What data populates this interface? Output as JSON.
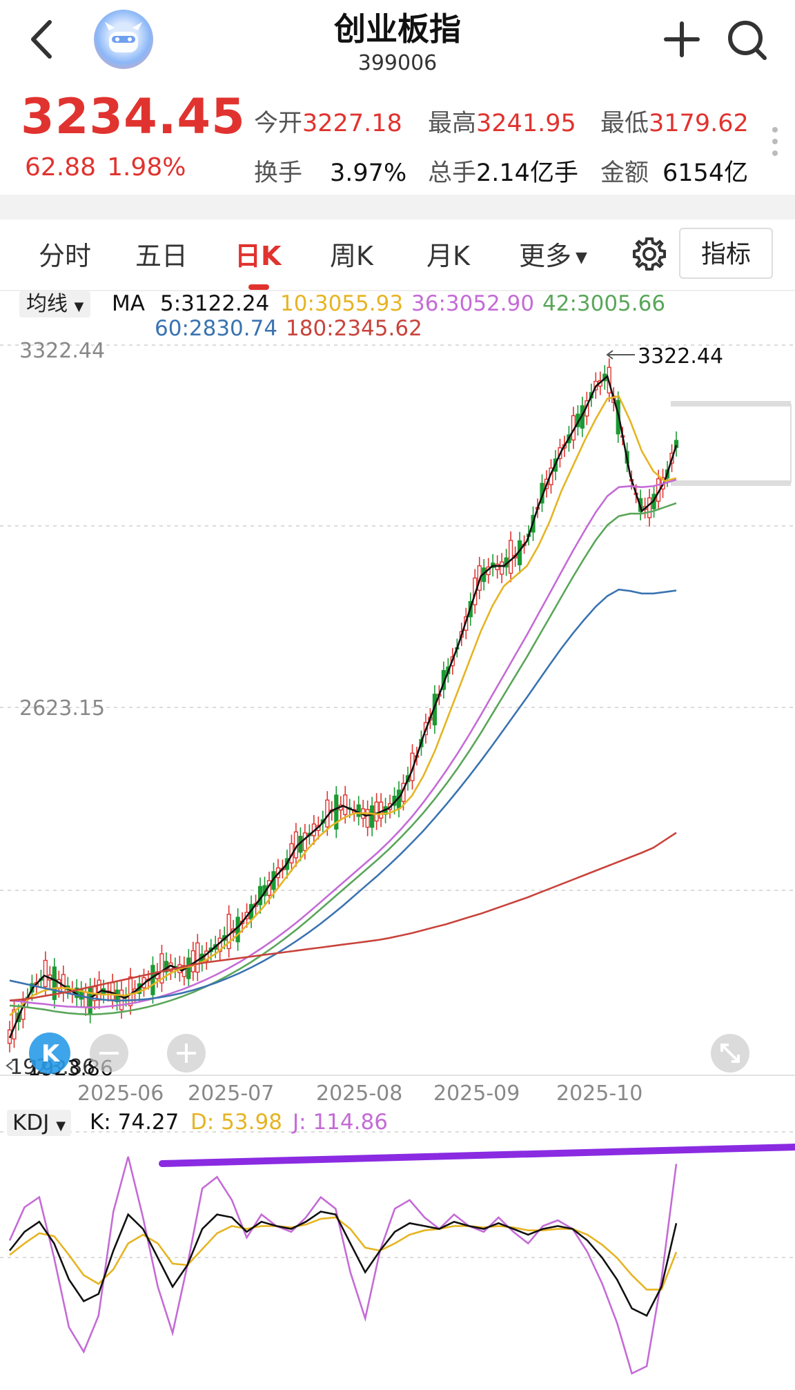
{
  "header": {
    "title": "创业板指",
    "code": "399006",
    "back_icon": "chevron-left-icon",
    "add_icon": "plus-icon",
    "search_icon": "search-icon"
  },
  "quote": {
    "price": "3234.45",
    "change": "62.88",
    "change_pct": "1.98%",
    "stats": [
      {
        "label": "今开",
        "value": "3227.18",
        "color": "red"
      },
      {
        "label": "最高",
        "value": "3241.95",
        "color": "red"
      },
      {
        "label": "最低",
        "value": "3179.62",
        "color": "red"
      },
      {
        "label": "换手",
        "value": "3.97%",
        "color": "black"
      },
      {
        "label": "总手",
        "value": "2.14亿手",
        "color": "black"
      },
      {
        "label": "金额",
        "value": "6154亿",
        "color": "black"
      }
    ]
  },
  "tabs": [
    {
      "label": "分时"
    },
    {
      "label": "五日"
    },
    {
      "label": "日K",
      "active": true
    },
    {
      "label": "周K"
    },
    {
      "label": "月K"
    },
    {
      "label": "更多"
    }
  ],
  "indicator_button": "指标",
  "ma_legend": {
    "selector": "均线",
    "prefix": "MA",
    "items": [
      {
        "label": "5:3122.24",
        "color": "#111111"
      },
      {
        "label": "10:3055.93",
        "color": "#e6b422"
      },
      {
        "label": "36:3052.90",
        "color": "#c46bd6"
      },
      {
        "label": "42:3005.66",
        "color": "#5aa65a"
      },
      {
        "label": "60:2830.74",
        "color": "#3a73b0"
      },
      {
        "label": "180:2345.62",
        "color": "#c8433b"
      }
    ]
  },
  "chart_data": {
    "type": "line",
    "x_ticks": [
      "2025-06",
      "2025-07",
      "2025-08",
      "2025-09",
      "2025-10"
    ],
    "y_ticks": [
      "3322.44",
      "2623.15",
      "1923.86"
    ],
    "high_marker": "3322.44",
    "low_marker": "1923.86",
    "series": [
      {
        "name": "MA5",
        "color": "#111111",
        "values": [
          1935,
          1990,
          2035,
          2060,
          2050,
          2035,
          2020,
          2015,
          2030,
          2025,
          2015,
          2030,
          2050,
          2065,
          2080,
          2070,
          2085,
          2100,
          2120,
          2140,
          2160,
          2190,
          2220,
          2255,
          2280,
          2320,
          2340,
          2360,
          2390,
          2400,
          2390,
          2380,
          2385,
          2395,
          2420,
          2470,
          2540,
          2600,
          2660,
          2720,
          2790,
          2860,
          2880,
          2880,
          2900,
          2930,
          3000,
          3060,
          3110,
          3150,
          3190,
          3240,
          3260,
          3180,
          3060,
          2990,
          3010,
          3050,
          3122
        ]
      },
      {
        "name": "MA10",
        "color": "#e6b422",
        "values": [
          1980,
          2000,
          2020,
          2030,
          2035,
          2035,
          2030,
          2025,
          2022,
          2022,
          2020,
          2025,
          2035,
          2050,
          2065,
          2075,
          2080,
          2090,
          2105,
          2125,
          2145,
          2170,
          2195,
          2225,
          2255,
          2285,
          2315,
          2340,
          2360,
          2375,
          2385,
          2385,
          2383,
          2385,
          2395,
          2420,
          2460,
          2510,
          2570,
          2630,
          2690,
          2750,
          2800,
          2840,
          2860,
          2880,
          2920,
          2970,
          3030,
          3080,
          3130,
          3175,
          3215,
          3220,
          3170,
          3110,
          3070,
          3050,
          3056
        ]
      },
      {
        "name": "MA36",
        "color": "#c46bd6",
        "values": [
          2010,
          2008,
          2005,
          2003,
          2000,
          1998,
          1997,
          1996,
          1997,
          1999,
          2002,
          2006,
          2011,
          2017,
          2024,
          2032,
          2041,
          2051,
          2062,
          2074,
          2087,
          2101,
          2116,
          2132,
          2149,
          2167,
          2186,
          2206,
          2226,
          2246,
          2266,
          2286,
          2306,
          2328,
          2352,
          2378,
          2407,
          2438,
          2471,
          2506,
          2543,
          2582,
          2622,
          2662,
          2702,
          2742,
          2784,
          2826,
          2868,
          2910,
          2950,
          2988,
          3020,
          3038,
          3040,
          3038,
          3040,
          3046,
          3053
        ]
      },
      {
        "name": "MA42",
        "color": "#5aa65a",
        "values": [
          2000,
          1998,
          1995,
          1992,
          1988,
          1985,
          1983,
          1982,
          1983,
          1985,
          1988,
          1992,
          1997,
          2003,
          2010,
          2018,
          2027,
          2037,
          2048,
          2060,
          2073,
          2087,
          2102,
          2118,
          2135,
          2153,
          2172,
          2192,
          2212,
          2232,
          2252,
          2272,
          2292,
          2313,
          2336,
          2360,
          2386,
          2414,
          2444,
          2476,
          2510,
          2546,
          2584,
          2622,
          2660,
          2698,
          2738,
          2778,
          2818,
          2858,
          2896,
          2932,
          2962,
          2980,
          2985,
          2985,
          2990,
          2998,
          3006
        ]
      },
      {
        "name": "MA60",
        "color": "#3a73b0",
        "values": [
          2050,
          2045,
          2040,
          2035,
          2030,
          2025,
          2020,
          2015,
          2012,
          2010,
          2010,
          2011,
          2013,
          2016,
          2020,
          2025,
          2031,
          2038,
          2046,
          2055,
          2065,
          2076,
          2088,
          2101,
          2115,
          2130,
          2146,
          2163,
          2181,
          2200,
          2220,
          2240,
          2260,
          2281,
          2303,
          2326,
          2350,
          2376,
          2403,
          2431,
          2460,
          2490,
          2521,
          2553,
          2585,
          2617,
          2650,
          2683,
          2715,
          2745,
          2773,
          2799,
          2820,
          2833,
          2830,
          2825,
          2825,
          2828,
          2831
        ]
      },
      {
        "name": "MA180",
        "color": "#c8433b",
        "values": [
          2010,
          2012,
          2015,
          2019,
          2023,
          2027,
          2032,
          2037,
          2042,
          2047,
          2052,
          2057,
          2062,
          2067,
          2072,
          2077,
          2082,
          2086,
          2089,
          2092,
          2095,
          2098,
          2101,
          2104,
          2107,
          2110,
          2113,
          2116,
          2119,
          2122,
          2125,
          2128,
          2131,
          2135,
          2140,
          2145,
          2151,
          2157,
          2163,
          2170,
          2177,
          2184,
          2192,
          2200,
          2208,
          2216,
          2225,
          2234,
          2243,
          2252,
          2261,
          2270,
          2279,
          2288,
          2297,
          2306,
          2316,
          2331,
          2346
        ]
      }
    ],
    "kdj": {
      "K": "74.27",
      "D": "53.98",
      "J": "114.86",
      "k_values": [
        55,
        68,
        75,
        60,
        35,
        20,
        25,
        55,
        80,
        70,
        50,
        30,
        45,
        70,
        80,
        78,
        68,
        75,
        72,
        70,
        75,
        82,
        80,
        60,
        40,
        55,
        68,
        74,
        72,
        70,
        75,
        72,
        70,
        74,
        70,
        66,
        70,
        72,
        70,
        62,
        50,
        35,
        15,
        10,
        30,
        74
      ],
      "d_values": [
        52,
        60,
        67,
        65,
        52,
        38,
        32,
        42,
        60,
        66,
        60,
        46,
        45,
        56,
        67,
        72,
        70,
        72,
        72,
        71,
        73,
        77,
        78,
        70,
        57,
        55,
        60,
        66,
        69,
        70,
        72,
        72,
        71,
        72,
        71,
        69,
        69,
        70,
        70,
        66,
        59,
        50,
        38,
        28,
        28,
        54
      ],
      "j_values": [
        62,
        85,
        92,
        50,
        2,
        -15,
        10,
        82,
        120,
        78,
        30,
        -2,
        45,
        98,
        106,
        90,
        64,
        80,
        72,
        68,
        78,
        92,
        84,
        40,
        8,
        55,
        84,
        90,
        78,
        70,
        80,
        72,
        68,
        78,
        68,
        60,
        72,
        76,
        70,
        54,
        32,
        5,
        -30,
        -25,
        35,
        115
      ]
    }
  },
  "kdj_legend": {
    "selector": "KDJ",
    "k": "K: 74.27",
    "d": "D: 53.98",
    "j": "J: 114.86"
  },
  "colors": {
    "up": "#e0332f",
    "down": "#1a9a33",
    "annotation": "#8a2be2"
  }
}
